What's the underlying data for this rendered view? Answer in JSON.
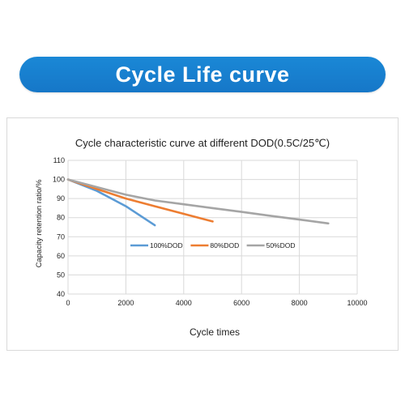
{
  "banner": {
    "title": "Cycle Life curve",
    "color": "#1677c8"
  },
  "chart_data": {
    "type": "line",
    "title": "Cycle characteristic curve at different DOD(0.5C/25℃)",
    "xlabel": "Cycle times",
    "ylabel": "Capacity retention ratio/%",
    "xlim": [
      0,
      10000
    ],
    "ylim": [
      40,
      110
    ],
    "xticks": [
      0,
      2000,
      4000,
      6000,
      8000,
      10000
    ],
    "yticks": [
      40,
      50,
      60,
      70,
      80,
      90,
      100,
      110
    ],
    "grid": true,
    "legend_position": "inside-center",
    "series": [
      {
        "name": "100%DOD",
        "color": "#5b9bd5",
        "points": [
          [
            0,
            100
          ],
          [
            1000,
            94
          ],
          [
            2000,
            86
          ],
          [
            3000,
            76
          ]
        ]
      },
      {
        "name": "80%DOD",
        "color": "#ed7d31",
        "points": [
          [
            0,
            100
          ],
          [
            1000,
            95
          ],
          [
            2000,
            90
          ],
          [
            3000,
            86
          ],
          [
            4000,
            82
          ],
          [
            5000,
            78
          ]
        ]
      },
      {
        "name": "50%DOD",
        "color": "#a5a5a5",
        "points": [
          [
            0,
            100
          ],
          [
            1000,
            96
          ],
          [
            2000,
            92
          ],
          [
            3000,
            89
          ],
          [
            4000,
            87
          ],
          [
            5000,
            85
          ],
          [
            6000,
            83
          ],
          [
            7000,
            81
          ],
          [
            8000,
            79
          ],
          [
            9000,
            77
          ]
        ]
      }
    ]
  }
}
